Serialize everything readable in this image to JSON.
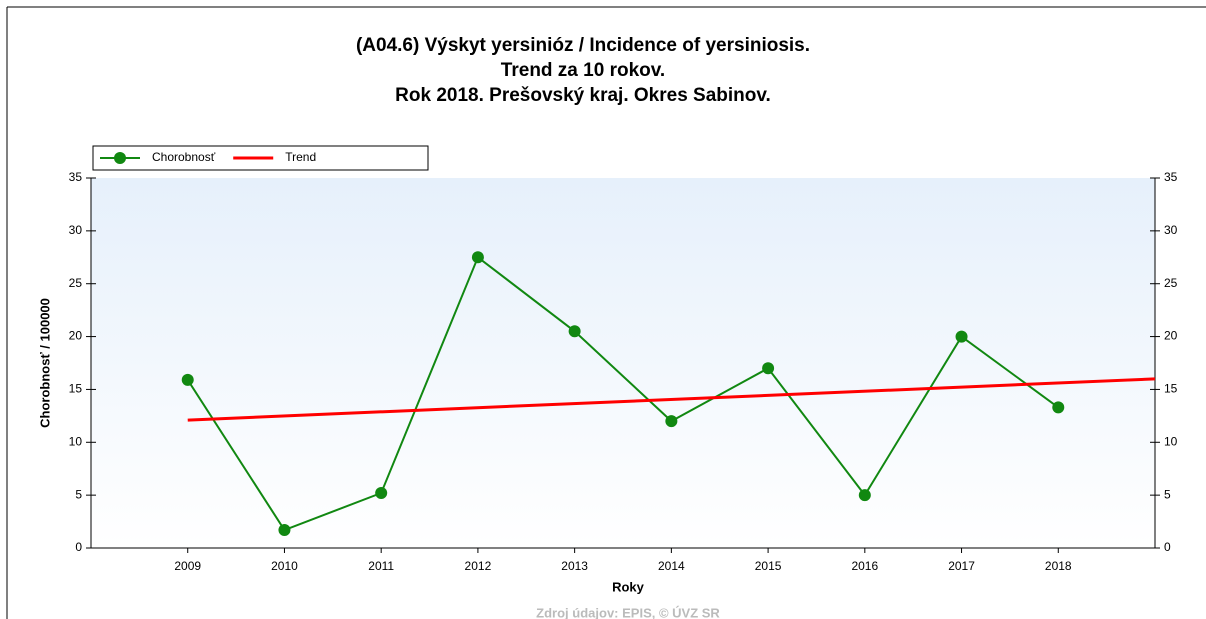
{
  "chart_data": {
    "type": "line",
    "title": [
      "(A04.6) Výskyt yersinióz / Incidence of yersiniosis.",
      "Trend za 10 rokov.",
      "Rok 2018. Prešovský kraj. Okres Sabinov."
    ],
    "x_label": "Roky",
    "y_label": "Chorobnosť / 100000",
    "source": "Zdroj údajov: EPIS, © ÚVZ SR",
    "xlim": [
      2008,
      2019
    ],
    "xticks": [
      2009,
      2010,
      2011,
      2012,
      2013,
      2014,
      2015,
      2016,
      2017,
      2018
    ],
    "ylim": [
      0,
      35
    ],
    "yticks": [
      0,
      5,
      10,
      15,
      20,
      25,
      30,
      35
    ],
    "series": [
      {
        "name": "Chorobnosť",
        "color": "#118811",
        "markers": true,
        "x": [
          2009,
          2010,
          2011,
          2012,
          2013,
          2014,
          2015,
          2016,
          2017,
          2018
        ],
        "values": [
          15.9,
          1.7,
          5.2,
          27.5,
          20.5,
          12.0,
          17.0,
          5.0,
          20.0,
          13.3
        ]
      },
      {
        "name": "Trend",
        "color": "#ff0000",
        "markers": false,
        "x": [
          2009,
          2019
        ],
        "values": [
          12.1,
          16.0
        ]
      }
    ],
    "legend": "top-left"
  }
}
